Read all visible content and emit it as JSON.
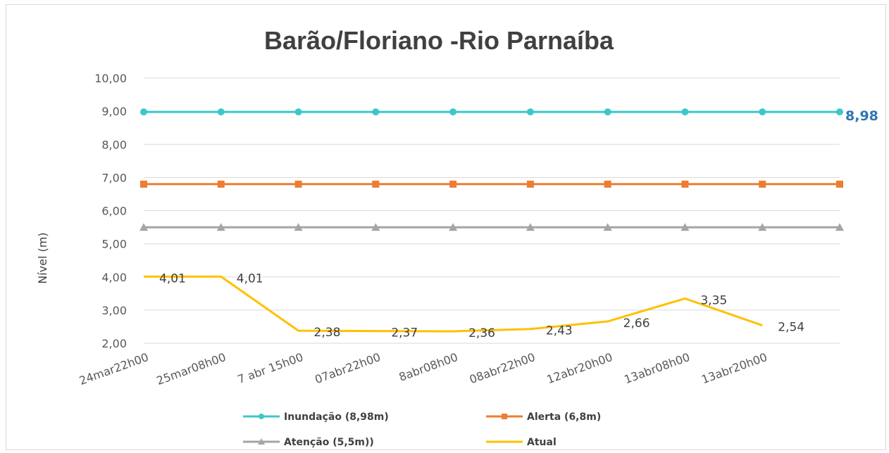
{
  "chart_data": {
    "type": "line",
    "title": "Barão/Floriano -Rio Parnaíba",
    "ylabel": "Nível (m)",
    "xlabel": "",
    "ylim": [
      2,
      10
    ],
    "y_ticks": [
      "10,00",
      "9,00",
      "8,00",
      "7,00",
      "6,00",
      "5,00",
      "4,00",
      "3,00",
      "2,00"
    ],
    "y_tick_values": [
      10,
      9,
      8,
      7,
      6,
      5,
      4,
      3,
      2
    ],
    "grid": true,
    "legend_position": "bottom",
    "categories": [
      "24mar22h00",
      "25mar08h00",
      "7 abr 15h00",
      "07abr22h00",
      "8abr08h00",
      "08abr22h00",
      "12abr20h00",
      "13abr08h00",
      "13abr20h00",
      ""
    ],
    "series": [
      {
        "name": "Inundação (8,98m)",
        "color": "#3cc8c8",
        "marker": "circle",
        "values": [
          8.98,
          8.98,
          8.98,
          8.98,
          8.98,
          8.98,
          8.98,
          8.98,
          8.98,
          8.98
        ]
      },
      {
        "name": "Alerta (6,8m)",
        "color": "#ed7d31",
        "marker": "square",
        "values": [
          6.8,
          6.8,
          6.8,
          6.8,
          6.8,
          6.8,
          6.8,
          6.8,
          6.8,
          6.8
        ]
      },
      {
        "name": "Atenção (5,5m))",
        "color": "#a5a5a5",
        "marker": "triangle",
        "values": [
          5.5,
          5.5,
          5.5,
          5.5,
          5.5,
          5.5,
          5.5,
          5.5,
          5.5,
          5.5
        ]
      },
      {
        "name": "Atual",
        "color": "#ffc000",
        "marker": "none",
        "values": [
          4.01,
          4.01,
          2.38,
          2.37,
          2.36,
          2.43,
          2.66,
          3.35,
          2.54,
          null
        ],
        "data_labels": [
          "4,01",
          "4,01",
          "2,38",
          "2,37",
          "2,36",
          "2,43",
          "2,66",
          "3,35",
          "2,54"
        ]
      }
    ],
    "end_label": "8,98"
  }
}
